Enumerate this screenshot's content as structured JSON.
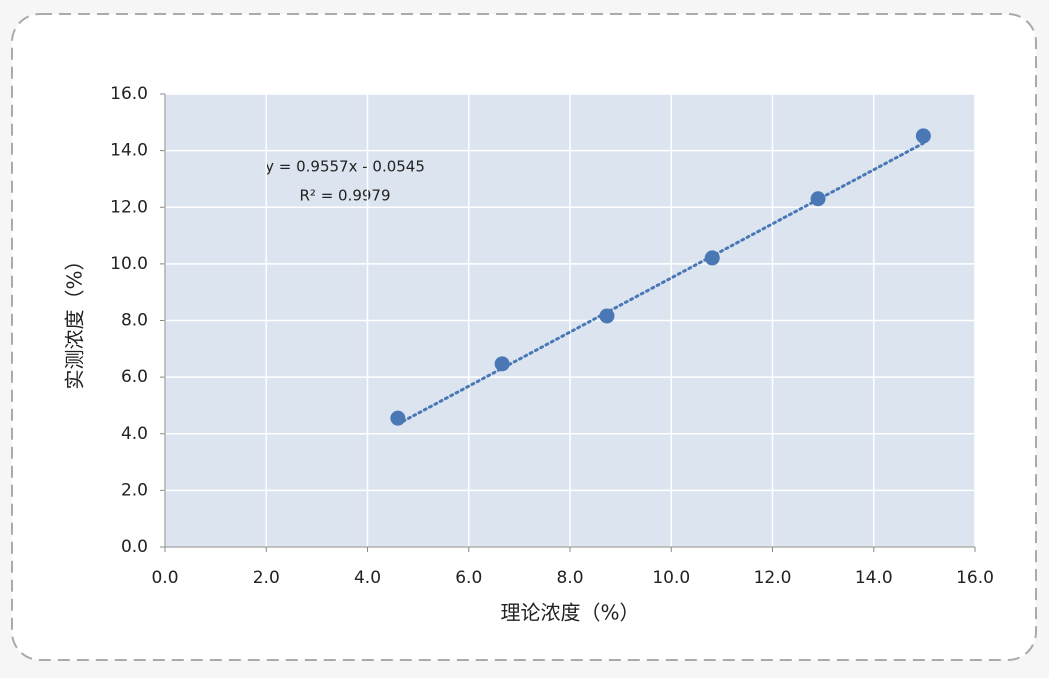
{
  "chart_data": {
    "type": "scatter",
    "x_label": "理论浓度（%）",
    "y_label": "实测浓度（%）",
    "series": [
      {
        "color": "#4a78b5",
        "x": [
          4.6,
          6.66,
          8.73,
          10.81,
          12.9,
          14.98
        ],
        "values": [
          4.55,
          6.47,
          8.16,
          10.21,
          12.3,
          14.52
        ]
      }
    ],
    "trendline": {
      "equation": "y = 0.9557x - 0.0545",
      "r_squared": "R² = 0.9979",
      "slope": 0.9557,
      "intercept": -0.0545,
      "color": "#4a78b5"
    },
    "xlim": [
      0,
      16
    ],
    "ylim": [
      0,
      16
    ],
    "xticks": [
      {
        "value": 0,
        "label": "0.0"
      },
      {
        "value": 2,
        "label": "2.0"
      },
      {
        "value": 4,
        "label": "4.0"
      },
      {
        "value": 6,
        "label": "6.0"
      },
      {
        "value": 8,
        "label": "8.0"
      },
      {
        "value": 10,
        "label": "10.0"
      },
      {
        "value": 12,
        "label": "12.0"
      },
      {
        "value": 14,
        "label": "14.0"
      },
      {
        "value": 16,
        "label": "16.0"
      }
    ],
    "yticks": [
      {
        "value": 0,
        "label": "0.0"
      },
      {
        "value": 2,
        "label": "2.0"
      },
      {
        "value": 4,
        "label": "4.0"
      },
      {
        "value": 6,
        "label": "6.0"
      },
      {
        "value": 8,
        "label": "8.0"
      },
      {
        "value": 10,
        "label": "10.0"
      },
      {
        "value": 12,
        "label": "12.0"
      },
      {
        "value": 14,
        "label": "14.0"
      },
      {
        "value": 16,
        "label": "16.0"
      }
    ],
    "grid": true
  }
}
